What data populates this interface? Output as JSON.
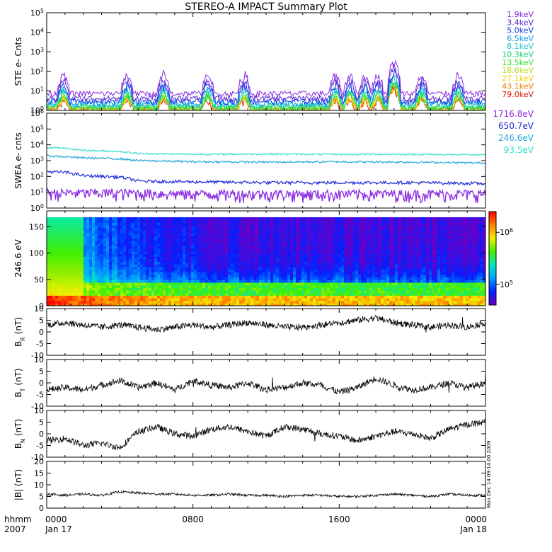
{
  "title": "STEREO-A IMPACT Summary Plot",
  "footer": {
    "left_top": "hhmm",
    "left_bottom": "2007",
    "ticks": [
      {
        "top": "0000",
        "bottom": "Jan 17",
        "hour": 0
      },
      {
        "top": "0800",
        "bottom": "",
        "hour": 8
      },
      {
        "top": "1600",
        "bottom": "",
        "hour": 16
      },
      {
        "top": "0000",
        "bottom": "Jan 18",
        "hour": 24
      }
    ]
  },
  "side_note": "Mon Dec 14 09:14:00 2009",
  "colors": {
    "ste": [
      "#8a2be2",
      "#5a2ad0",
      "#1a3af0",
      "#10a0e8",
      "#20c8c8",
      "#10d870",
      "#30e030",
      "#b8e020",
      "#f0d000",
      "#f08000",
      "#e02000"
    ],
    "swea": [
      "#8a2be2",
      "#1a2ad8",
      "#20a8d8",
      "#30e0c8"
    ],
    "colorbar": [
      "#6a00c8",
      "#0020ff",
      "#00a0ff",
      "#00e8c0",
      "#40f000",
      "#f0f000",
      "#ff8000",
      "#ff0000"
    ]
  },
  "chart_data": [
    {
      "type": "line",
      "panel": "ste",
      "ylabel": "STE e- Cnts",
      "yscale": "log",
      "yticks": [
        "10^0",
        "10^1",
        "10^2",
        "10^3",
        "10^4",
        "10^5"
      ],
      "ylim": [
        1,
        100000
      ],
      "x_range_hours": [
        0,
        24
      ],
      "legend_placement": "right",
      "series": [
        {
          "name": "1.9keV",
          "typical": 7
        },
        {
          "name": "3.4keV",
          "typical": 4
        },
        {
          "name": "5.0keV",
          "typical": 2.8
        },
        {
          "name": "6.5keV",
          "typical": 2.2
        },
        {
          "name": "8.1keV",
          "typical": 1.8
        },
        {
          "name": "10.3keV",
          "typical": 1.5
        },
        {
          "name": "13.5keV",
          "typical": 1.3
        },
        {
          "name": "18.6keV",
          "typical": 1.2
        },
        {
          "name": "27.1keV",
          "typical": 1.1
        },
        {
          "name": "43.1keV",
          "typical": 1.05
        },
        {
          "name": "79.0keV",
          "typical": 1.0
        }
      ],
      "enhancements_hours": [
        0.9,
        4.4,
        6.4,
        8.8,
        10.8,
        15.8,
        16.6,
        17.4,
        18.1,
        19.0,
        20.5,
        22.5
      ]
    },
    {
      "type": "line",
      "panel": "swea",
      "ylabel": "SWEA e- cnts",
      "yscale": "log",
      "yticks": [
        "10^0",
        "10^1",
        "10^2",
        "10^3",
        "10^4",
        "10^5",
        "10^6"
      ],
      "ylim": [
        1,
        1000000
      ],
      "x_range_hours": [
        0,
        24
      ],
      "legend_placement": "right",
      "series": [
        {
          "name": "1716.8eV",
          "hours": [
            0,
            4,
            8,
            12,
            16,
            20,
            24
          ],
          "values": [
            7,
            7,
            6,
            6,
            6,
            6,
            6
          ]
        },
        {
          "name": "650.7eV",
          "hours": [
            0,
            1,
            2,
            4,
            5,
            8,
            12,
            16,
            20,
            24
          ],
          "values": [
            200,
            180,
            110,
            90,
            50,
            45,
            40,
            40,
            40,
            35
          ]
        },
        {
          "name": "246.6eV",
          "hours": [
            0,
            2,
            4,
            5,
            8,
            12,
            16,
            20,
            24
          ],
          "values": [
            2000,
            1500,
            1300,
            1000,
            850,
            800,
            850,
            800,
            700
          ]
        },
        {
          "name": "93.5eV",
          "hours": [
            0,
            1,
            2,
            4,
            5,
            8,
            12,
            16,
            20,
            24
          ],
          "values": [
            7000,
            6000,
            4500,
            3800,
            2800,
            2500,
            2600,
            2500,
            2500,
            2300
          ]
        }
      ]
    },
    {
      "type": "heatmap",
      "panel": "pad",
      "ylabel": "246.6 eV",
      "yticks": [
        0,
        50,
        100,
        150
      ],
      "ylim": [
        0,
        180
      ],
      "x_range_hours": [
        0,
        24
      ],
      "colorbar_labels": [
        "10^6",
        "10^5"
      ],
      "colorbar_values": [
        1000000,
        100000
      ],
      "colorbar_range": [
        40000,
        2500000
      ]
    },
    {
      "type": "line",
      "panel": "br",
      "ylabel": "B_R (nT)",
      "yticks": [
        -10,
        -5,
        0,
        5,
        10
      ],
      "ylim": [
        -10,
        10
      ],
      "x_range_hours": [
        0,
        24
      ],
      "hours": [
        0,
        1,
        2,
        3,
        4,
        5,
        6,
        7,
        8,
        9,
        10,
        11,
        12,
        13,
        14,
        15,
        16,
        17,
        18,
        19,
        20,
        21,
        22,
        23,
        24
      ],
      "values": [
        3,
        4,
        3,
        2,
        3,
        2,
        1,
        2,
        3,
        2,
        3,
        4,
        3,
        2,
        2,
        3,
        4,
        5,
        6,
        4,
        3,
        2,
        3,
        2,
        4
      ]
    },
    {
      "type": "line",
      "panel": "bt",
      "ylabel": "B_T (nT)",
      "yticks": [
        -10,
        -5,
        0,
        5,
        10
      ],
      "ylim": [
        -10,
        10
      ],
      "x_range_hours": [
        0,
        24
      ],
      "hours": [
        0,
        1,
        2,
        3,
        4,
        5,
        6,
        7,
        8,
        9,
        10,
        11,
        12,
        13,
        14,
        15,
        16,
        17,
        18,
        19,
        20,
        21,
        22,
        23,
        24
      ],
      "values": [
        -3,
        -2,
        -3,
        -1,
        1,
        -2,
        0,
        -3,
        1,
        -1,
        -2,
        0,
        -3,
        -2,
        0,
        -1,
        -4,
        -2,
        2,
        -1,
        -3,
        -2,
        0,
        -2,
        0
      ]
    },
    {
      "type": "line",
      "panel": "bn",
      "ylabel": "B_N (nT)",
      "yticks": [
        -10,
        -5,
        0,
        5,
        10
      ],
      "ylim": [
        -10,
        10
      ],
      "x_range_hours": [
        0,
        24
      ],
      "hours": [
        0,
        1,
        2,
        3,
        4,
        5,
        6,
        7,
        8,
        9,
        10,
        11,
        12,
        13,
        14,
        15,
        16,
        17,
        18,
        19,
        20,
        21,
        22,
        23,
        24
      ],
      "values": [
        -3,
        -2,
        -5,
        -4,
        -6,
        1,
        3,
        0,
        -1,
        2,
        3,
        1,
        -1,
        3,
        2,
        0,
        -1,
        -3,
        -1,
        1,
        0,
        -2,
        2,
        4,
        5
      ]
    },
    {
      "type": "line",
      "panel": "bmag",
      "ylabel": "|B| (nT)",
      "yticks": [
        0,
        5,
        10,
        15,
        20
      ],
      "ylim": [
        0,
        20
      ],
      "x_range_hours": [
        0,
        24
      ],
      "hours": [
        0,
        1,
        2,
        3,
        4,
        5,
        6,
        7,
        8,
        9,
        10,
        11,
        12,
        13,
        14,
        15,
        16,
        17,
        18,
        19,
        20,
        21,
        22,
        23,
        24
      ],
      "values": [
        6,
        5.5,
        6,
        5.5,
        7,
        6.5,
        6,
        6,
        5.5,
        5.5,
        6,
        5.5,
        5.5,
        5,
        5.5,
        5.5,
        5,
        5,
        5.5,
        6,
        5.5,
        5,
        6,
        5.5,
        5.5
      ]
    }
  ]
}
